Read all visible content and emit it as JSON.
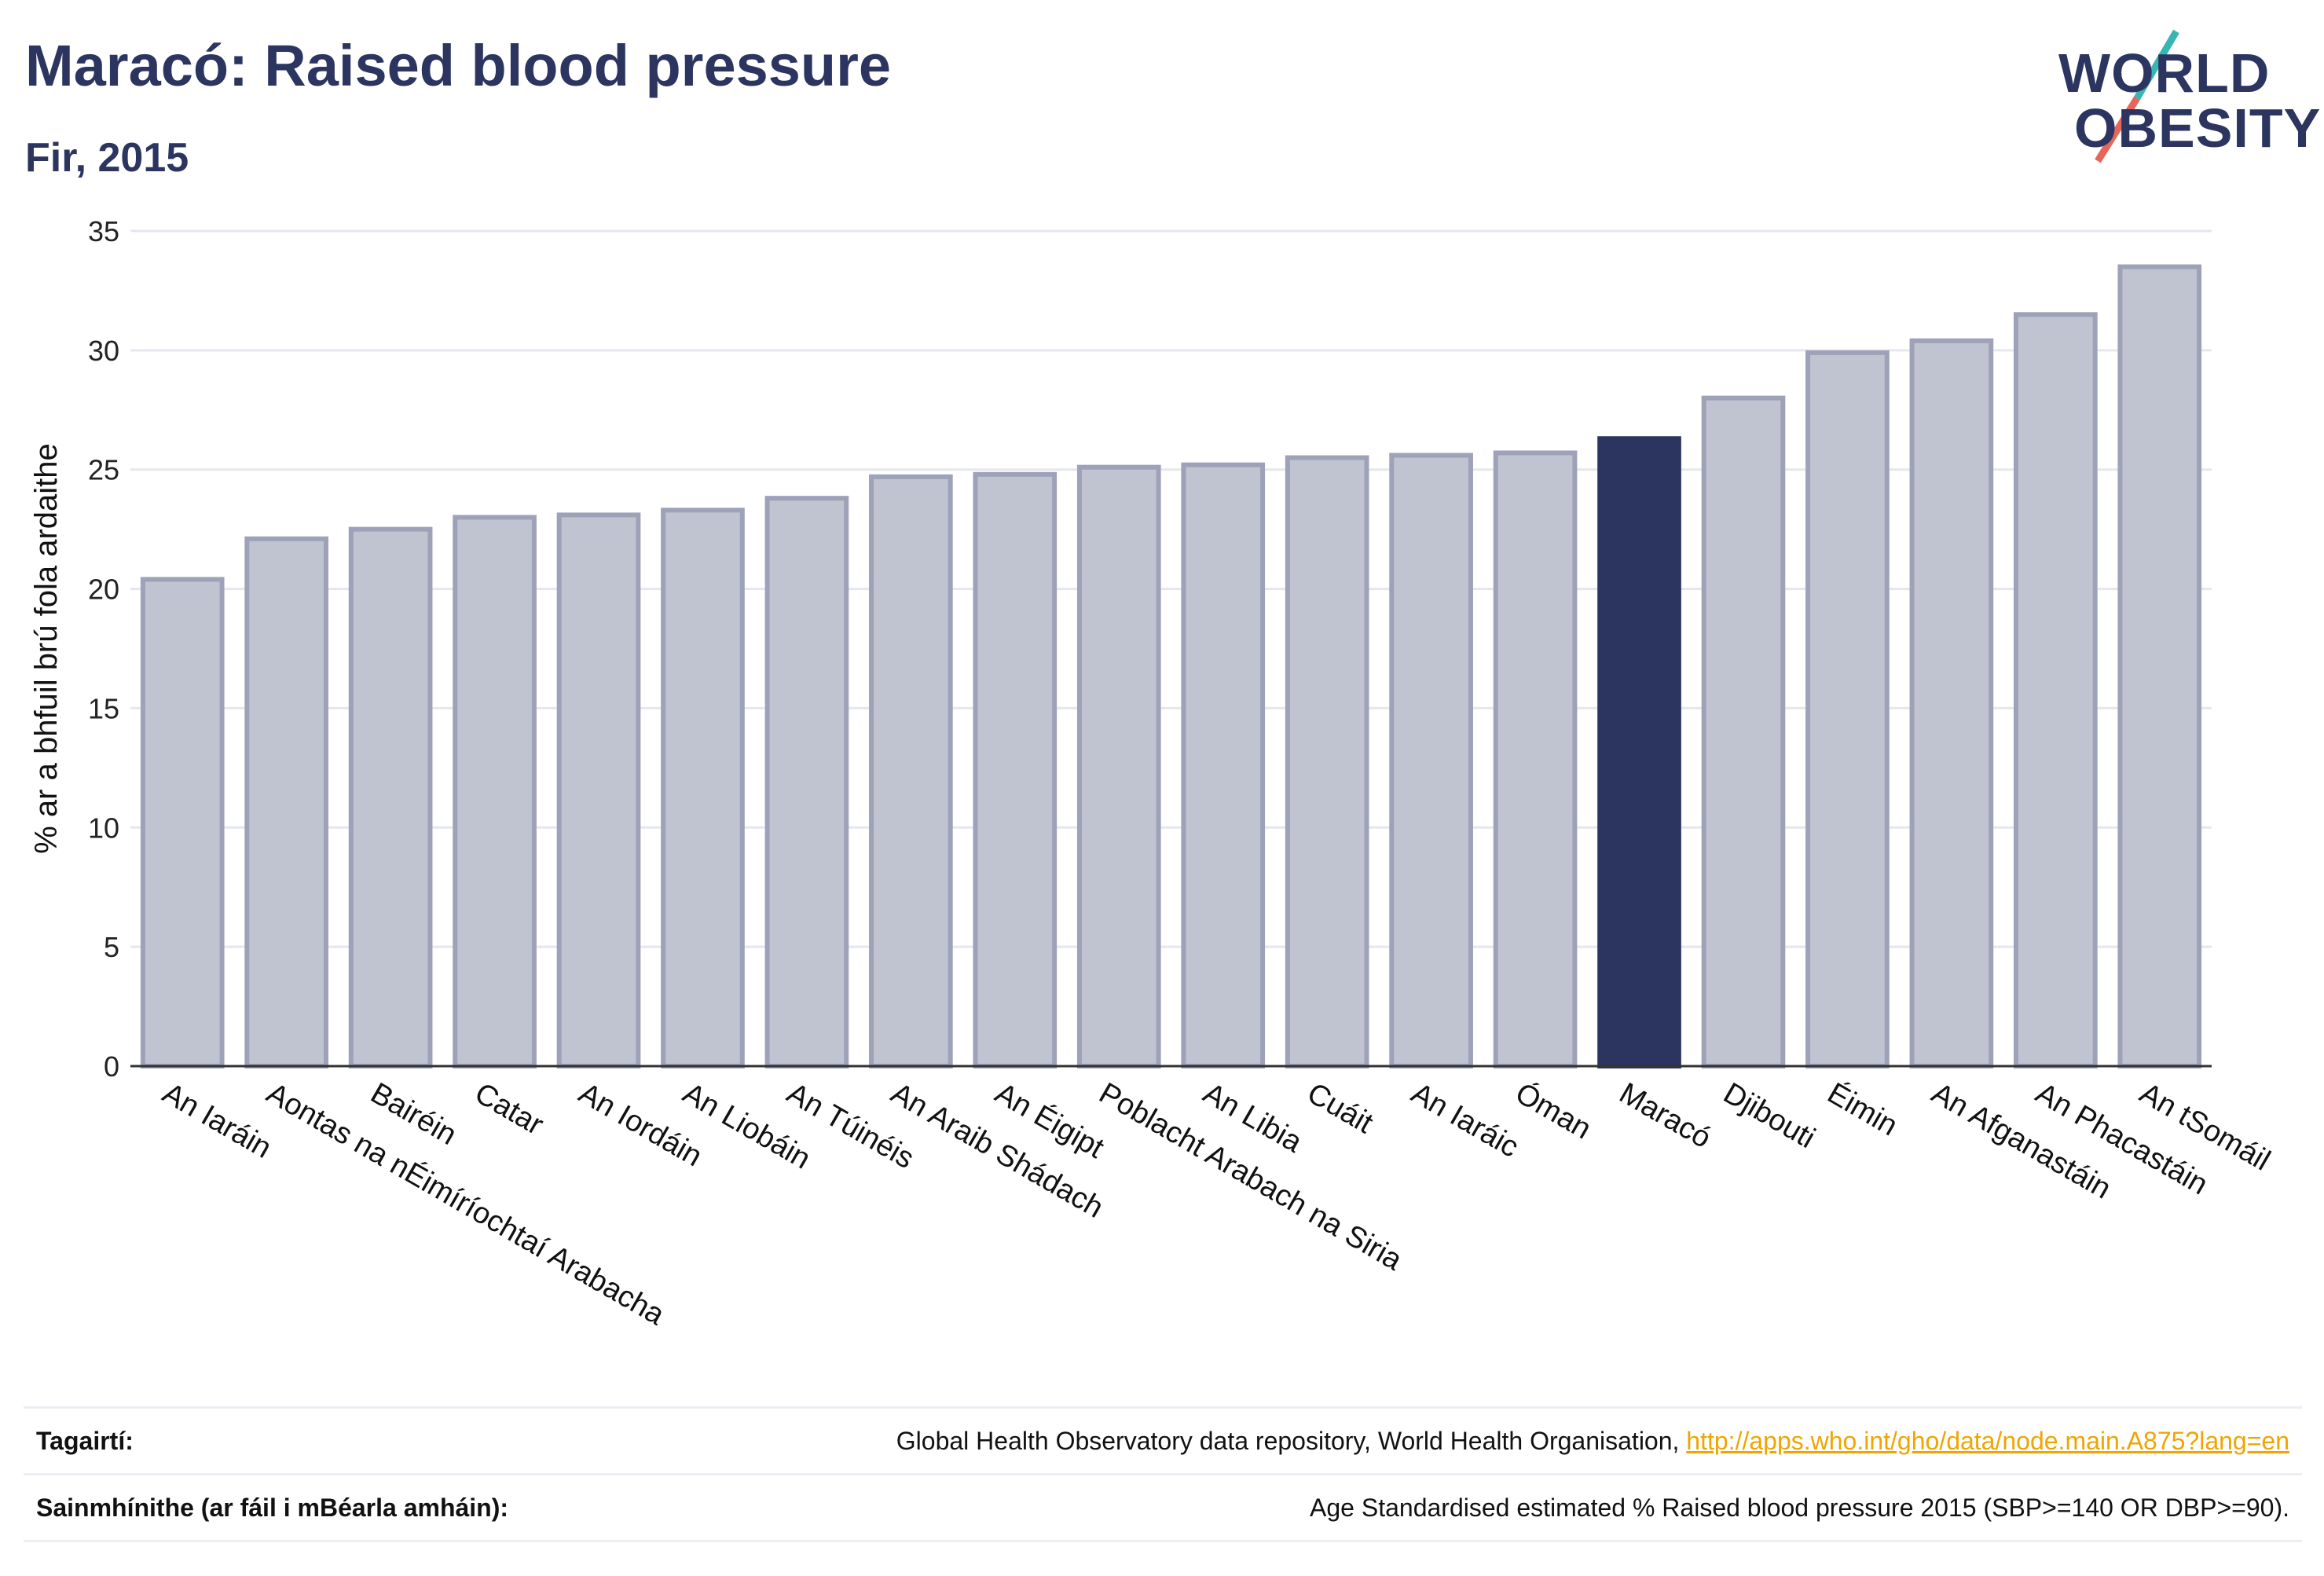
{
  "header": {
    "title": "Maracó: Raised blood pressure",
    "subtitle": "Fir, 2015"
  },
  "logo": {
    "line1": "WORLD",
    "line2": "OBESITY",
    "accent_teal": "#36b7b4",
    "accent_red": "#e5675a"
  },
  "chart_data": {
    "type": "bar",
    "ylabel": "% ar a bhfuil brú fola ardaithe",
    "ylim": [
      0,
      35
    ],
    "yticks": [
      0,
      5,
      10,
      15,
      20,
      25,
      30,
      35
    ],
    "grid": true,
    "bar_color": "#c0c3d0",
    "bar_outline": "#9da2b8",
    "highlight_color": "#2b3560",
    "highlight_category": "Maracó",
    "categories": [
      "An Iaráin",
      "Aontas na nÉimíríochtaí Arabacha",
      "Bairéin",
      "Catar",
      "An Iordáin",
      "An Liobáin",
      "An Túinéis",
      "An Araib Shádach",
      "An Éigipt",
      "Poblacht Arabach na Siria",
      "An Libia",
      "Cuáit",
      "An Iaráic",
      "Óman",
      "Maracó",
      "Djibouti",
      "Éimin",
      "An Afganastáin",
      "An Phacastáin",
      "An tSomáil"
    ],
    "values": [
      20.4,
      22.1,
      22.5,
      23.0,
      23.1,
      23.3,
      23.8,
      24.7,
      24.8,
      25.1,
      25.2,
      25.5,
      25.6,
      25.7,
      26.3,
      28.0,
      29.9,
      30.4,
      31.5,
      33.5
    ]
  },
  "footer": {
    "references_label": "Tagairtí:",
    "references_text": "Global Health Observatory data repository, World Health Organisation, ",
    "references_link": "http://apps.who.int/gho/data/node.main.A875?lang=en",
    "definitions_label": "Sainmhínithe (ar fáil i mBéarla amháin):",
    "definitions_text": "Age Standardised estimated % Raised blood pressure 2015 (SBP>=140 OR DBP>=90)."
  }
}
